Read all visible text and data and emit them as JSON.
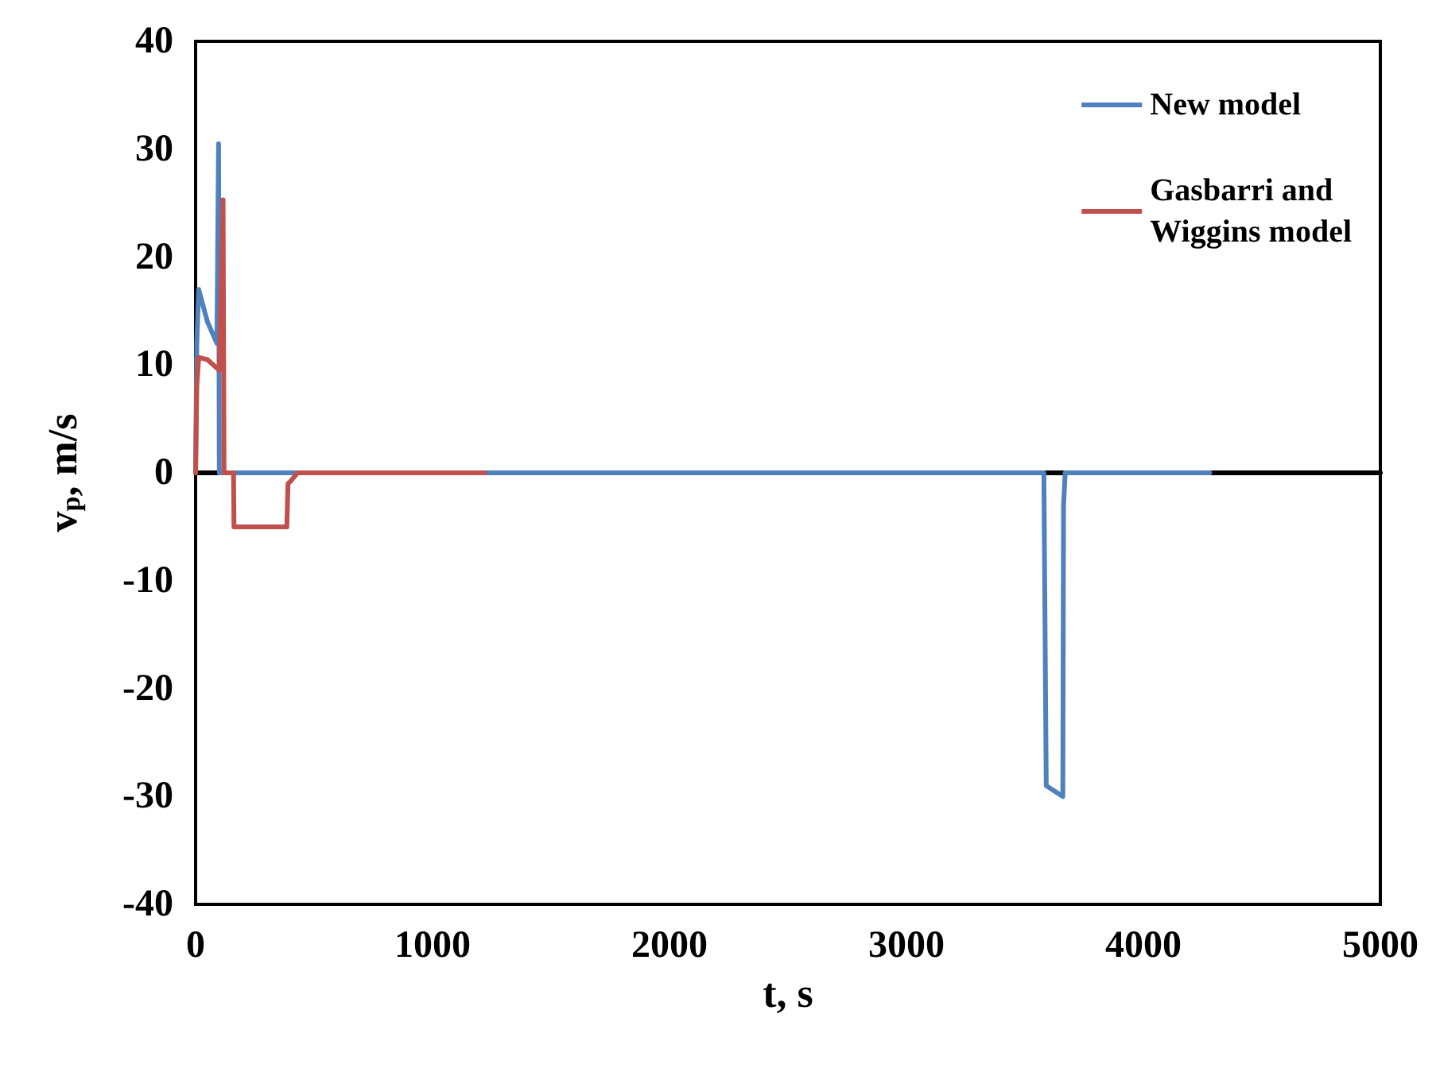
{
  "chart_data": {
    "type": "line",
    "xlabel": "t, s",
    "ylabel": "v$_{p}$, m/s",
    "xlim": [
      0,
      5000
    ],
    "xticks": [
      0,
      1000,
      2000,
      3000,
      4000,
      5000
    ],
    "ylim": [
      -40,
      40
    ],
    "yticks": [
      -40,
      -30,
      -20,
      -10,
      0,
      10,
      20,
      30,
      40
    ],
    "legend": "top right",
    "marker": "none",
    "line_style": "solid",
    "series": [
      {
        "name": "New model",
        "color": "#4f81bd",
        "x": [
          0,
          5,
          13,
          50,
          90,
          97,
          100,
          3580,
          3590,
          3660,
          3663,
          3665,
          3670,
          4280
        ],
        "values": [
          0,
          12,
          17,
          14,
          12,
          30.5,
          0,
          0,
          -29,
          -30,
          -3,
          -3,
          0,
          0
        ]
      },
      {
        "name": "Gasbarri and Wiggins model",
        "color": "#c0504d",
        "x": [
          0,
          5,
          13,
          50,
          100,
          116,
          120,
          160,
          162,
          385,
          390,
          400,
          430,
          1220
        ],
        "values": [
          0,
          8,
          10.7,
          10.5,
          9.5,
          25.3,
          0,
          0,
          -5,
          -5,
          -1,
          -0.8,
          0,
          0
        ]
      }
    ]
  }
}
